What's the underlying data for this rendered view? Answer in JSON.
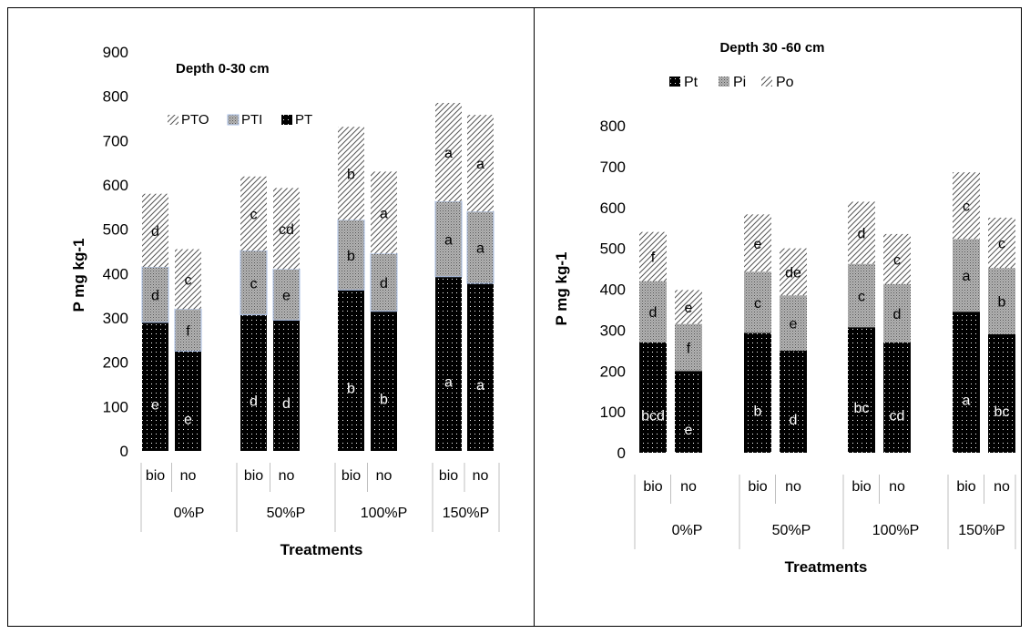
{
  "chart_data": [
    {
      "type": "bar",
      "title": "Depth 0-30 cm",
      "xlabel": "Treatments",
      "ylabel": "P mg kg-1",
      "ylim": [
        0,
        900
      ],
      "yticks": [
        0,
        100,
        200,
        300,
        400,
        500,
        600,
        700,
        800,
        900
      ],
      "legend_position": "top-left",
      "legend_order": [
        "PTO",
        "PTI",
        "PT"
      ],
      "groups": [
        "0%P",
        "50%P",
        "100%P",
        "150%P"
      ],
      "categories": [
        "bio",
        "no",
        "bio",
        "no",
        "bio",
        "no",
        "bio",
        "no"
      ],
      "stacked": true,
      "series": [
        {
          "name": "PT",
          "values": [
            290,
            225,
            307,
            295,
            363,
            315,
            393,
            378
          ],
          "letters": [
            "e",
            "e",
            "d",
            "d",
            "b",
            "b",
            "a",
            "a"
          ],
          "color": "#000000",
          "pattern": "dots"
        },
        {
          "name": "PTI",
          "values": [
            125,
            95,
            145,
            115,
            158,
            130,
            170,
            162
          ],
          "letters": [
            "d",
            "f",
            "c",
            "e",
            "b",
            "d",
            "a",
            "a"
          ],
          "color": "#a6a6a6",
          "pattern": "grid"
        },
        {
          "name": "PTO",
          "values": [
            165,
            135,
            167,
            183,
            210,
            185,
            222,
            218
          ],
          "letters": [
            "d",
            "c",
            "c",
            "cd",
            "b",
            "a",
            "a",
            "a"
          ],
          "color": "#ffffff",
          "pattern": "diagonal"
        }
      ]
    },
    {
      "type": "bar",
      "title": "Depth 30 -60 cm",
      "xlabel": "Treatments",
      "ylabel": "P mg kg-1",
      "ylim": [
        0,
        800
      ],
      "yticks": [
        0,
        100,
        200,
        300,
        400,
        500,
        600,
        700,
        800
      ],
      "legend_position": "top",
      "legend_order": [
        "Pt",
        "Pi",
        "Po"
      ],
      "groups": [
        "0%P",
        "50%P",
        "100%P",
        "150%P"
      ],
      "categories": [
        "bio",
        "no",
        "bio",
        "no",
        "bio",
        "no",
        "bio",
        "no"
      ],
      "stacked": true,
      "series": [
        {
          "name": "Pt",
          "values": [
            270,
            200,
            293,
            250,
            307,
            270,
            345,
            290
          ],
          "letters": [
            "bcd",
            "e",
            "b",
            "d",
            "bc",
            "cd",
            "a",
            "bc"
          ],
          "color": "#000000",
          "pattern": "dots"
        },
        {
          "name": "Pi",
          "values": [
            150,
            115,
            150,
            135,
            155,
            143,
            178,
            162
          ],
          "letters": [
            "d",
            "f",
            "c",
            "e",
            "c",
            "d",
            "a",
            "b"
          ],
          "color": "#a6a6a6",
          "pattern": "grid"
        },
        {
          "name": "Po",
          "values": [
            120,
            83,
            140,
            115,
            152,
            122,
            163,
            123
          ],
          "letters": [
            "f",
            "e",
            "e",
            "de",
            "d",
            "c",
            "c",
            "c"
          ],
          "color": "#ffffff",
          "pattern": "diagonal"
        }
      ]
    }
  ]
}
